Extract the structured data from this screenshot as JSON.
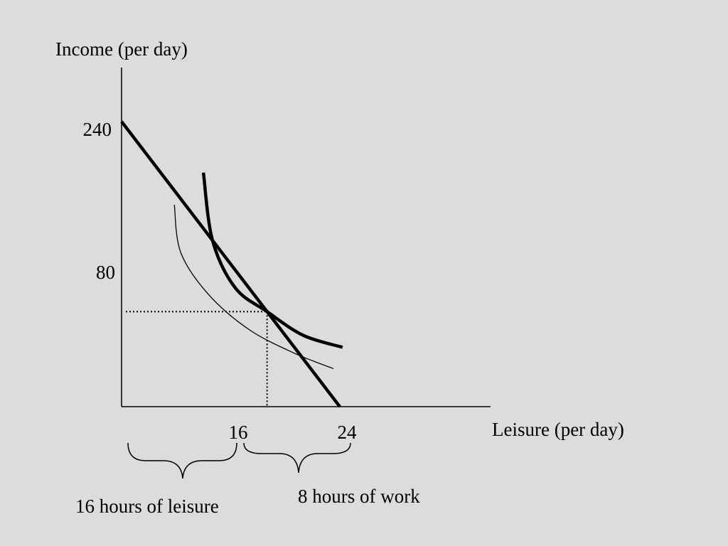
{
  "chart_data": {
    "type": "line",
    "title": "",
    "ylabel": "Income (per day)",
    "xlabel": "Leisure (per day)",
    "y_ticks": [
      {
        "value": 240,
        "label": "240"
      },
      {
        "value": 80,
        "label": "80"
      }
    ],
    "x_ticks": [
      {
        "value": 16,
        "label": "16"
      },
      {
        "value": 24,
        "label": "24"
      }
    ],
    "series": [
      {
        "kind": "budget_line",
        "points": [
          [
            0,
            240
          ],
          [
            24,
            0
          ]
        ]
      },
      {
        "kind": "indifference_curve_high",
        "points": [
          [
            9,
            197
          ],
          [
            10,
            140
          ],
          [
            12.5,
            100
          ],
          [
            16,
            80
          ],
          [
            20,
            60
          ],
          [
            24.3,
            50
          ]
        ]
      },
      {
        "kind": "indifference_curve_low",
        "points": [
          [
            5.8,
            170
          ],
          [
            6.5,
            130
          ],
          [
            9.5,
            95
          ],
          [
            14,
            65
          ],
          [
            19,
            45
          ],
          [
            23.3,
            32
          ]
        ]
      }
    ],
    "optimum": {
      "x": 16,
      "y": 80
    },
    "grid": false
  },
  "annotations": {
    "leisure_brace_label": "16 hours of leisure",
    "work_brace_label": "8 hours of work"
  }
}
